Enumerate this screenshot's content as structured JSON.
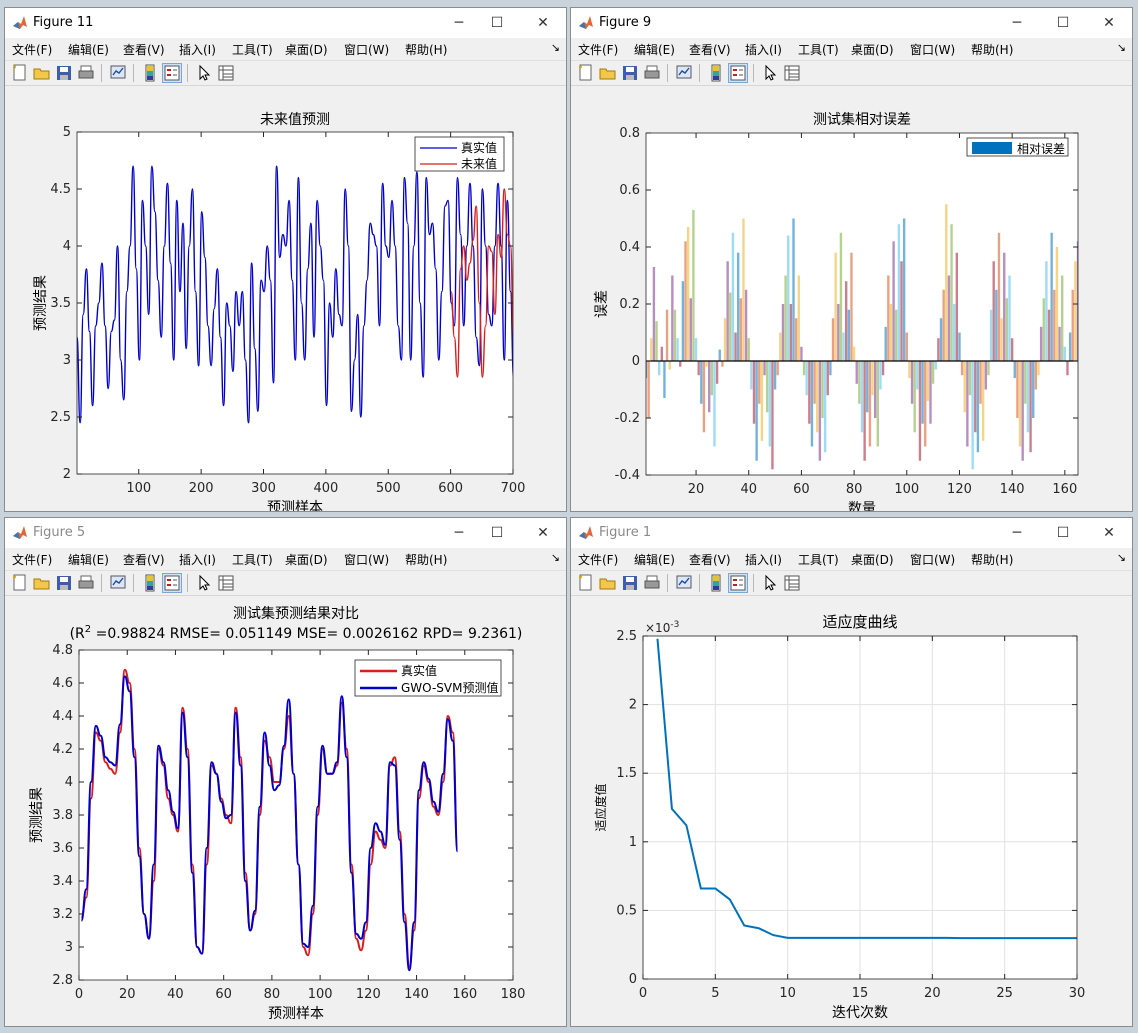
{
  "menu_labels": [
    "文件(F)",
    "编辑(E)",
    "查看(V)",
    "插入(I)",
    "工具(T)",
    "桌面(D)",
    "窗口(W)",
    "帮助(H)"
  ],
  "menu_end_glyph": "↘",
  "window_controls": {
    "minimize": "─",
    "maximize": "☐",
    "close": "✕"
  },
  "toolbar_icons": [
    "new-figure-icon",
    "open-file-icon",
    "save-icon",
    "print-icon",
    "link-plot-icon",
    "colorbar-icon",
    "legend-icon",
    "edit-plot-arrow-icon",
    "property-inspector-icon"
  ],
  "colors": {
    "blue": "#0000cc",
    "red": "#d81e1e",
    "matlab_blue": "#0072bd",
    "axes_bg": "#ffffff"
  },
  "windows": [
    {
      "id": "fig11",
      "title": "Figure 11",
      "chart_data": {
        "type": "line",
        "title": "未来值预测",
        "xlabel": "预测样本",
        "ylabel": "预测结果",
        "xlim": [
          1,
          700
        ],
        "ylim": [
          2,
          5
        ],
        "xticks": [
          100,
          200,
          300,
          400,
          500,
          600,
          700
        ],
        "yticks": [
          2,
          2.5,
          3,
          3.5,
          4,
          4.5,
          5
        ],
        "legend": {
          "position": "top-right",
          "entries": [
            "真实值",
            "未来值"
          ]
        },
        "series": [
          {
            "name": "真实值",
            "color": "#0000cc",
            "x_start": 1,
            "x_step": 5,
            "values": [
              3.2,
              2.45,
              3.4,
              3.8,
              3.25,
              2.6,
              3.3,
              3.5,
              3.85,
              3.3,
              2.75,
              3.25,
              3.35,
              4.0,
              3.0,
              2.65,
              3.6,
              4.0,
              4.7,
              3.8,
              3.0,
              4.4,
              4.0,
              3.4,
              4.7,
              4.3,
              3.7,
              3.2,
              4.0,
              4.55,
              3.85,
              3.0,
              4.4,
              3.6,
              4.2,
              3.1,
              4.0,
              4.5,
              3.6,
              2.95,
              4.3,
              3.9,
              3.3,
              2.95,
              3.45,
              3.8,
              3.2,
              2.6,
              3.5,
              3.3,
              2.9,
              3.6,
              3.3,
              3.6,
              3.0,
              2.45,
              3.85,
              3.1,
              2.55,
              3.7,
              3.6,
              4.0,
              3.7,
              2.8,
              4.7,
              3.9,
              4.1,
              4.0,
              4.4,
              3.7,
              3.0,
              4.6,
              3.5,
              3.0,
              3.8,
              4.2,
              3.2,
              4.4,
              4.0,
              3.7,
              2.6,
              3.5,
              3.2,
              3.8,
              3.4,
              3.3,
              4.5,
              4.0,
              2.55,
              3.0,
              3.4,
              2.5,
              3.3,
              3.7,
              4.2,
              4.1,
              4.0,
              3.3,
              4.55,
              4.0,
              3.9,
              4.4,
              4.0,
              3.3,
              3.0,
              4.6,
              4.2,
              3.0,
              4.0,
              4.65,
              3.5,
              2.85,
              4.6,
              4.1,
              4.2,
              3.8,
              3.0,
              3.6,
              4.35,
              4.4,
              3.5,
              3.3,
              4.6,
              4.1,
              3.3,
              4.0,
              4.55,
              4.0,
              3.2,
              2.95,
              4.5,
              4.0,
              3.4,
              3.3,
              4.0,
              4.55,
              4.0,
              3.0,
              4.4,
              3.6,
              2.85,
              4.2,
              3.8,
              3.0,
              4.5,
              4.0,
              3.4,
              3.9,
              4.6,
              3.6,
              3.0,
              4.2,
              4.4,
              3.4,
              3.0,
              4.4,
              4.0,
              3.5,
              4.0,
              4.2,
              3.5,
              3.0,
              4.2,
              4.4,
              3.5,
              3.0,
              3.5,
              4.2,
              4.45,
              3.9,
              3.0,
              3.8,
              4.2,
              4.1,
              3.0,
              4.2,
              4.4,
              3.5,
              3.0,
              3.5,
              4.3,
              4.0,
              3.2,
              2.95,
              4.0,
              3.6,
              3.1,
              4.25,
              4.3,
              3.3,
              3.2,
              4.3,
              3.5,
              4.0,
              3.6
            ]
          },
          {
            "name": "未来值",
            "color": "#d81e1e",
            "x_start": 601,
            "x_step": 5,
            "values": [
              3.6,
              3.2,
              2.85,
              3.8,
              4.0,
              3.7,
              3.85,
              4.05,
              4.35,
              3.5,
              2.85,
              3.3,
              4.0,
              3.95,
              3.4,
              4.1,
              3.9,
              4.5,
              4.1,
              4.0,
              3.2,
              2.9,
              3.6,
              4.15,
              4.05,
              3.3,
              2.95,
              4.0,
              4.3,
              4.55,
              3.5,
              3.3,
              4.5,
              4.0,
              3.05,
              4.0,
              4.55,
              3.8,
              3.0
            ]
          }
        ]
      }
    },
    {
      "id": "fig9",
      "title": "Figure 9",
      "chart_data": {
        "type": "bar",
        "title": "测试集相对误差",
        "xlabel": "数量",
        "ylabel": "误差",
        "xlim": [
          1,
          165
        ],
        "ylim": [
          -0.4,
          0.8
        ],
        "xticks": [
          20,
          40,
          60,
          80,
          100,
          120,
          140,
          160
        ],
        "yticks": [
          -0.4,
          -0.2,
          0,
          0.2,
          0.4,
          0.6,
          0.8
        ],
        "legend": {
          "position": "top-right",
          "entries": [
            "相对误差"
          ]
        },
        "series": [
          {
            "name": "相对误差",
            "color": "#0072bd",
            "x_start": 1,
            "x_step": 1,
            "values": [
              -0.06,
              -0.2,
              0.08,
              0.33,
              0.14,
              -0.05,
              0.05,
              -0.13,
              0.18,
              -0.03,
              0.3,
              0.18,
              0.08,
              -0.02,
              0.28,
              0.42,
              0.47,
              0.22,
              0.53,
              0.08,
              -0.05,
              -0.15,
              -0.25,
              -0.02,
              -0.18,
              -0.12,
              -0.3,
              -0.08,
              0.04,
              -0.02,
              0.15,
              0.35,
              0.24,
              0.45,
              0.1,
              0.38,
              0.22,
              0.5,
              0.25,
              0.08,
              -0.1,
              -0.22,
              -0.35,
              -0.15,
              -0.28,
              -0.05,
              -0.18,
              -0.3,
              -0.38,
              -0.1,
              -0.05,
              0.1,
              0.2,
              0.3,
              0.44,
              0.2,
              0.5,
              0.15,
              0.3,
              0.05,
              -0.05,
              -0.12,
              -0.22,
              -0.3,
              -0.15,
              -0.25,
              -0.35,
              -0.2,
              -0.32,
              -0.12,
              -0.05,
              0.15,
              0.38,
              0.2,
              0.45,
              0.1,
              0.28,
              0.18,
              0.38,
              0.05,
              -0.08,
              -0.15,
              -0.25,
              -0.35,
              -0.18,
              -0.3,
              -0.12,
              -0.2,
              -0.3,
              -0.1,
              -0.05,
              0.12,
              0.3,
              0.2,
              0.42,
              0.18,
              0.48,
              0.35,
              0.5,
              0.1,
              -0.06,
              -0.15,
              -0.25,
              -0.1,
              -0.35,
              -0.22,
              -0.3,
              -0.14,
              -0.22,
              -0.08,
              -0.03,
              0.08,
              0.15,
              0.25,
              0.55,
              0.3,
              0.48,
              0.2,
              0.38,
              0.1,
              -0.05,
              -0.18,
              -0.3,
              -0.12,
              -0.38,
              -0.25,
              -0.32,
              -0.15,
              -0.28,
              -0.1,
              -0.05,
              0.18,
              0.35,
              0.25,
              0.45,
              0.15,
              0.38,
              0.22,
              0.3,
              0.08,
              -0.06,
              -0.2,
              -0.3,
              -0.35,
              -0.15,
              -0.25,
              -0.32,
              -0.2,
              -0.1,
              -0.05,
              0.12,
              0.22,
              0.35,
              0.18,
              0.45,
              0.25,
              0.4,
              0.12,
              0.3,
              0.05,
              -0.05,
              0.1,
              0.25,
              0.35,
              0.42
            ]
          }
        ]
      }
    },
    {
      "id": "fig5",
      "title": "Figure 5",
      "chart_data": {
        "type": "line",
        "title": "测试集预测结果对比",
        "subtitle": {
          "prefix": "(R",
          "sup": "2",
          "rest": " =0.98824 RMSE= 0.051149 MSE= 0.0026162 RPD= 9.2361)"
        },
        "xlabel": "预测样本",
        "ylabel": "预测结果",
        "xlim": [
          0,
          180
        ],
        "ylim": [
          2.8,
          4.8
        ],
        "xticks": [
          0,
          20,
          40,
          60,
          80,
          100,
          120,
          140,
          160,
          180
        ],
        "yticks": [
          2.8,
          3,
          3.2,
          3.4,
          3.6,
          3.8,
          4,
          4.2,
          4.4,
          4.6,
          4.8
        ],
        "legend": {
          "position": "top-right",
          "entries": [
            "真实值",
            "GWO-SVM预测值"
          ]
        },
        "series": [
          {
            "name": "真实值",
            "color": "#d81e1e",
            "x_start": 1,
            "x_step": 2,
            "values": [
              3.18,
              3.3,
              3.9,
              4.3,
              4.25,
              4.12,
              4.08,
              4.05,
              4.3,
              4.68,
              4.6,
              4.2,
              3.6,
              3.2,
              3.06,
              3.4,
              4.2,
              4.1,
              3.9,
              3.8,
              3.7,
              4.45,
              4.2,
              3.5,
              3.0,
              2.96,
              3.5,
              4.1,
              4.05,
              3.9,
              3.8,
              3.75,
              4.45,
              4.15,
              3.45,
              3.1,
              3.2,
              3.8,
              4.25,
              4.15,
              4.0,
              4.0,
              4.2,
              4.4,
              4.05,
              3.5,
              3.0,
              2.95,
              3.2,
              3.8,
              4.2,
              4.05,
              4.05,
              4.1,
              4.48,
              4.2,
              3.5,
              3.05,
              2.98,
              3.1,
              3.5,
              3.7,
              3.65,
              3.6,
              4.1,
              4.15,
              3.7,
              3.2,
              2.88,
              3.1,
              3.9,
              4.1,
              4.0,
              3.85,
              3.8,
              4.0,
              4.4,
              4.3,
              3.6
            ]
          },
          {
            "name": "GWO-SVM预测值",
            "color": "#0000cc",
            "x_start": 1,
            "x_step": 2,
            "values": [
              3.16,
              3.35,
              4.0,
              4.34,
              4.28,
              4.15,
              4.12,
              4.1,
              4.35,
              4.64,
              4.55,
              4.15,
              3.55,
              3.2,
              3.05,
              3.5,
              4.22,
              4.12,
              3.95,
              3.82,
              3.72,
              4.42,
              4.15,
              3.45,
              3.0,
              2.96,
              3.6,
              4.12,
              4.05,
              3.88,
              3.78,
              3.8,
              4.42,
              4.1,
              3.4,
              3.1,
              3.22,
              3.85,
              4.3,
              4.1,
              3.95,
              3.98,
              4.22,
              4.5,
              4.05,
              3.5,
              3.02,
              3.0,
              3.25,
              3.85,
              4.22,
              4.05,
              4.05,
              4.12,
              4.52,
              4.15,
              3.45,
              3.08,
              3.05,
              3.15,
              3.6,
              3.75,
              3.7,
              3.62,
              4.12,
              4.1,
              3.65,
              3.15,
              2.86,
              3.15,
              3.95,
              4.12,
              4.02,
              3.88,
              3.82,
              4.05,
              4.38,
              4.25,
              3.58
            ]
          }
        ]
      }
    },
    {
      "id": "fig1",
      "title": "Figure 1",
      "chart_data": {
        "type": "line",
        "title": "适应度曲线",
        "xlabel": "迭代次数",
        "ylabel": "适应度值",
        "exponent_label": {
          "base": "×10",
          "exp": "-3"
        },
        "xlim": [
          0,
          30
        ],
        "ylim": [
          0,
          2.5
        ],
        "xticks": [
          0,
          5,
          10,
          15,
          20,
          25,
          30
        ],
        "yticks": [
          0,
          0.5,
          1,
          1.5,
          2,
          2.5
        ],
        "grid": true,
        "series": [
          {
            "color": "#0072bd",
            "x": [
              1,
              2,
              3,
              4,
              5,
              6,
              7,
              8,
              9,
              10,
              11,
              12,
              13,
              14,
              15,
              16,
              17,
              18,
              19,
              20,
              21,
              22,
              23,
              24,
              25,
              26,
              27,
              28,
              29,
              30
            ],
            "values": [
              2.48,
              1.24,
              1.12,
              0.66,
              0.66,
              0.58,
              0.39,
              0.37,
              0.32,
              0.3,
              0.3,
              0.3,
              0.3,
              0.3,
              0.3,
              0.3,
              0.3,
              0.3,
              0.3,
              0.3,
              0.3,
              0.298,
              0.298,
              0.298,
              0.298,
              0.298,
              0.298,
              0.298,
              0.298,
              0.298
            ]
          }
        ]
      }
    }
  ]
}
